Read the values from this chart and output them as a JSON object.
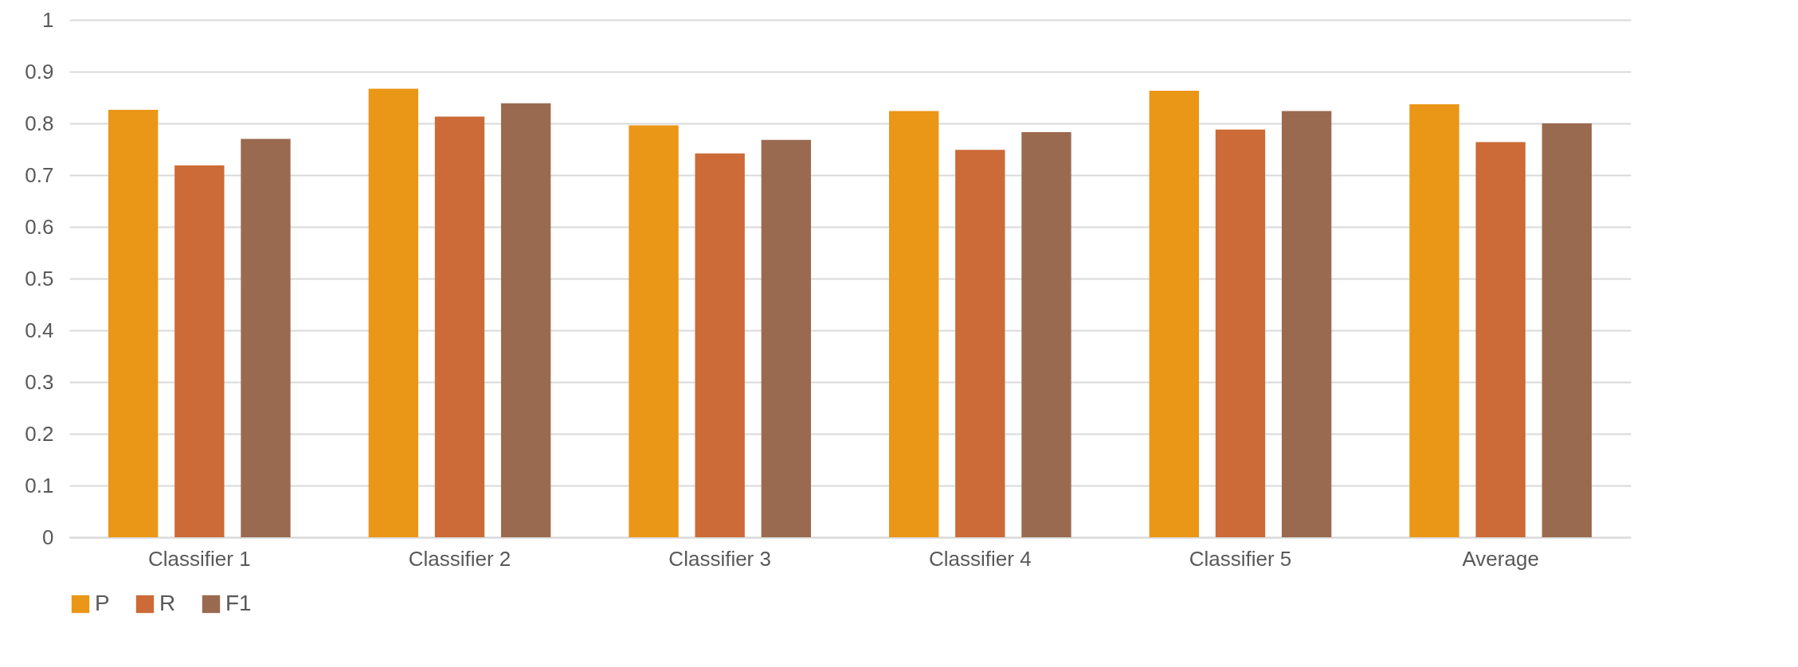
{
  "chart_data": {
    "type": "bar",
    "categories": [
      "Classifier 1",
      "Classifier 2",
      "Classifier 3",
      "Classifier 4",
      "Classifier 5",
      "Average"
    ],
    "series": [
      {
        "name": "P",
        "color": "#ea9616",
        "values": [
          0.826,
          0.867,
          0.796,
          0.824,
          0.863,
          0.837
        ]
      },
      {
        "name": "R",
        "color": "#cc6b37",
        "values": [
          0.719,
          0.813,
          0.742,
          0.749,
          0.788,
          0.764
        ]
      },
      {
        "name": "F1",
        "color": "#9a6a50",
        "values": [
          0.77,
          0.839,
          0.768,
          0.783,
          0.824,
          0.8
        ]
      }
    ],
    "ylim": [
      0,
      1
    ],
    "yticks": [
      0,
      0.1,
      0.2,
      0.3,
      0.4,
      0.5,
      0.6,
      0.7,
      0.8,
      0.9,
      1
    ],
    "grid": "y",
    "legend": "bottom"
  }
}
